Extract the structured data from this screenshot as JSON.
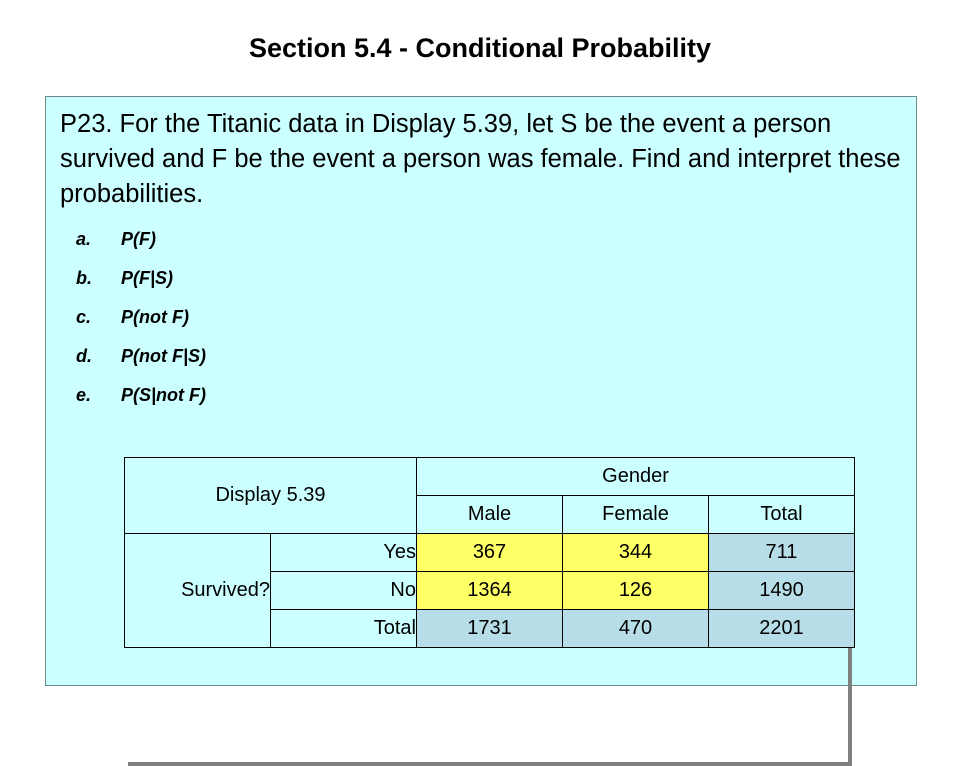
{
  "title": "Section 5.4 - Conditional Probability",
  "problem": "P23. For the Titanic data in Display 5.39, let S be the event a person survived and F be the event a person was female. Find and interpret these probabilities.",
  "items": [
    {
      "letter": "a.",
      "text": "P(F)"
    },
    {
      "letter": "b.",
      "text": "P(F|S)"
    },
    {
      "letter": "c.",
      "text": "P(not F)"
    },
    {
      "letter": "d.",
      "text": "P(not F|S)"
    },
    {
      "letter": "e.",
      "text": "P(S|not F)"
    }
  ],
  "table": {
    "caption": "Display 5.39",
    "column_group": "Gender",
    "columns": [
      "Male",
      "Female",
      "Total"
    ],
    "row_group": "Survived?",
    "rows": [
      {
        "label": "Yes",
        "values": [
          "367",
          "344",
          "711"
        ]
      },
      {
        "label": "No",
        "values": [
          "1364",
          "126",
          "1490"
        ]
      },
      {
        "label": "Total",
        "values": [
          "1731",
          "470",
          "2201"
        ]
      }
    ]
  }
}
